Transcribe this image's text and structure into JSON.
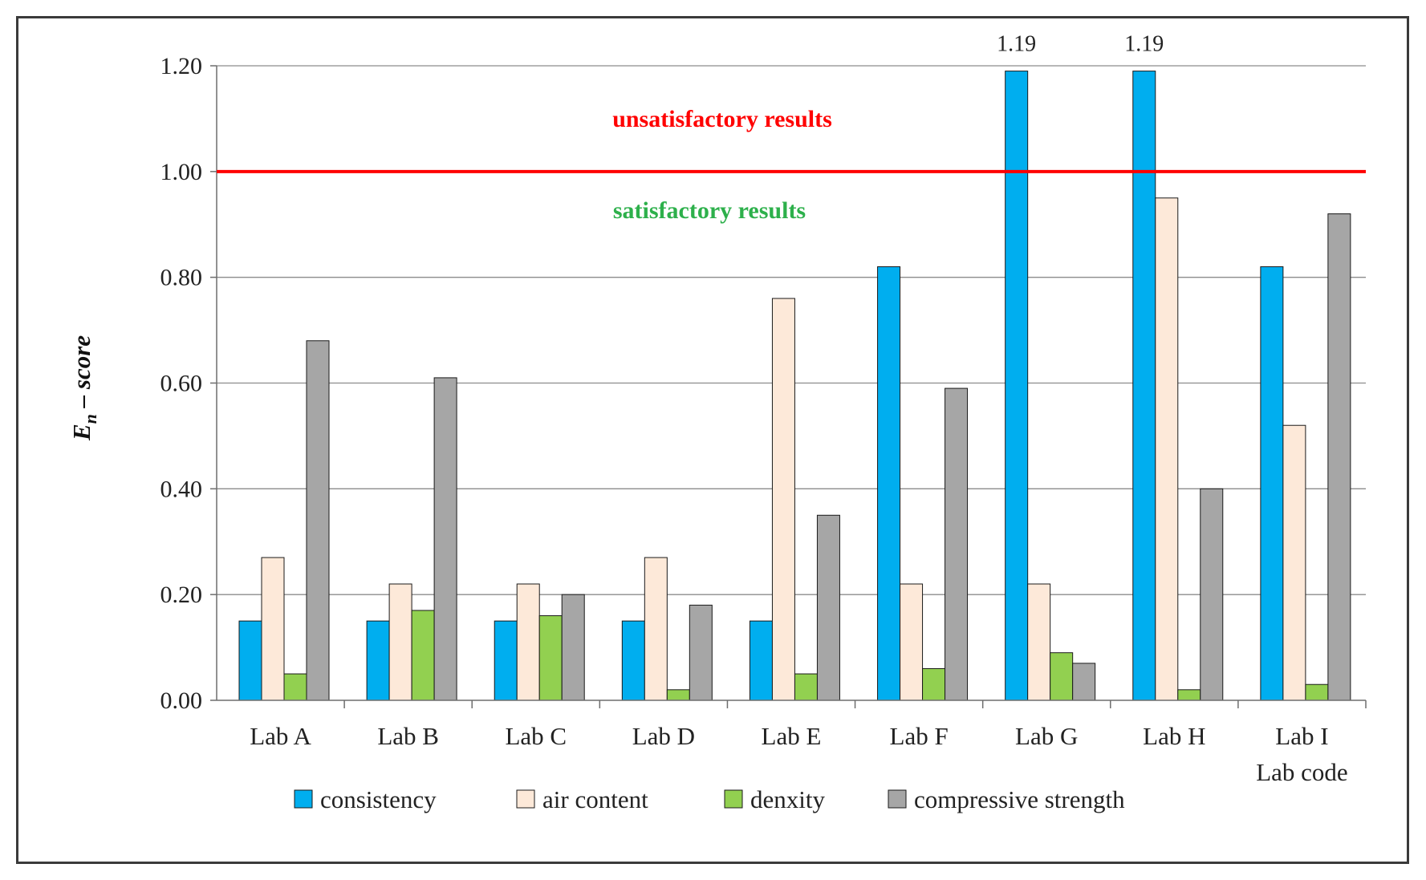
{
  "chart_data": {
    "type": "bar",
    "title": "",
    "xlabel": "Lab code",
    "ylabel": "En – score",
    "ylabel_main": "E",
    "ylabel_sub": "n",
    "ylabel_rest": " – score",
    "ylim": [
      0,
      1.2
    ],
    "yticks": [
      0,
      0.2,
      0.4,
      0.6,
      0.8,
      1.0,
      1.2
    ],
    "ytick_labels": [
      "0.00",
      "0.20",
      "0.40",
      "0.60",
      "0.80",
      "1.00",
      "1.20"
    ],
    "grid": true,
    "categories": [
      "Lab A",
      "Lab B",
      "Lab C",
      "Lab D",
      "Lab E",
      "Lab F",
      "Lab G",
      "Lab H",
      "Lab I"
    ],
    "series": [
      {
        "name": "consistency",
        "color": "#00aeef",
        "values": [
          0.15,
          0.15,
          0.15,
          0.15,
          0.15,
          0.82,
          1.19,
          1.19,
          0.82
        ]
      },
      {
        "name": "air content",
        "color": "#fde9d9",
        "values": [
          0.27,
          0.22,
          0.22,
          0.27,
          0.76,
          0.22,
          0.22,
          0.95,
          0.52
        ]
      },
      {
        "name": "denxity",
        "color": "#92d050",
        "values": [
          0.05,
          0.17,
          0.16,
          0.02,
          0.05,
          0.06,
          0.09,
          0.02,
          0.03
        ]
      },
      {
        "name": "compressive strength",
        "color": "#a6a6a6",
        "values": [
          0.68,
          0.61,
          0.2,
          0.18,
          0.35,
          0.59,
          0.07,
          0.4,
          0.92
        ]
      }
    ],
    "data_labels": [
      {
        "category": "Lab G",
        "series": "consistency",
        "text": "1.19"
      },
      {
        "category": "Lab H",
        "series": "consistency",
        "text": "1.19"
      }
    ],
    "threshold": {
      "value": 1.0,
      "color": "#ff0000"
    },
    "annotations": [
      {
        "text": "unsatisfactory results",
        "color": "#ff0000"
      },
      {
        "text": "satisfactory results",
        "color": "#2db04b"
      }
    ],
    "legend_position": "bottom"
  }
}
